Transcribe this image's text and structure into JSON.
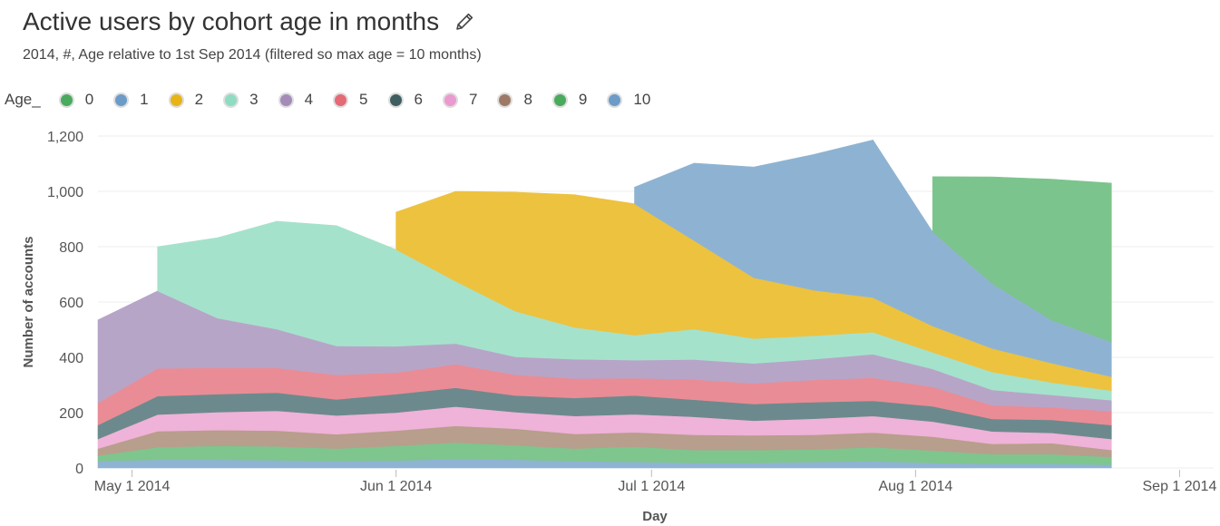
{
  "header": {
    "title": "Active users by cohort age in months",
    "subtitle": "2014, #, Age relative to 1st Sep 2014 (filtered so max age = 10 months)",
    "edit_icon": "pencil-icon"
  },
  "legend": {
    "title": "Age_",
    "items": [
      {
        "label": "0",
        "color": "#4aaa5e"
      },
      {
        "label": "1",
        "color": "#6c9bc8"
      },
      {
        "label": "2",
        "color": "#e7b416"
      },
      {
        "label": "3",
        "color": "#8fdcc2"
      },
      {
        "label": "4",
        "color": "#a58cb8"
      },
      {
        "label": "5",
        "color": "#e46a75"
      },
      {
        "label": "6",
        "color": "#3f5e62"
      },
      {
        "label": "7",
        "color": "#eb9ad0"
      },
      {
        "label": "8",
        "color": "#9e7a66"
      },
      {
        "label": "9",
        "color": "#4aaa5e"
      },
      {
        "label": "10",
        "color": "#6c9bc8"
      }
    ]
  },
  "chart_data": {
    "type": "area",
    "stacked": true,
    "xlabel": "Day",
    "ylabel": "Number of accounts",
    "ylim": [
      0,
      1200
    ],
    "yticks": [
      0,
      200,
      400,
      600,
      800,
      1000,
      1200
    ],
    "ytick_labels": [
      "0",
      "200",
      "400",
      "600",
      "800",
      "1,000",
      "1,200"
    ],
    "xlim": [
      "2014-04-27",
      "2014-09-05"
    ],
    "xticks": [
      "2014-05-01",
      "2014-06-01",
      "2014-07-01",
      "2014-08-01",
      "2014-09-01"
    ],
    "xtick_labels": [
      "May 1 2014",
      "Jun 1 2014",
      "Jul 1 2014",
      "Aug 1 2014",
      "Sep 1 2014"
    ],
    "grid": true,
    "legend_position": "top",
    "x": [
      "2014-04-27",
      "2014-05-04",
      "2014-05-11",
      "2014-05-18",
      "2014-05-25",
      "2014-06-01",
      "2014-06-08",
      "2014-06-15",
      "2014-06-22",
      "2014-06-29",
      "2014-07-06",
      "2014-07-13",
      "2014-07-20",
      "2014-07-27",
      "2014-08-03",
      "2014-08-10",
      "2014-08-17",
      "2014-08-24"
    ],
    "series": [
      {
        "name": "0",
        "color": "#8fb3d3",
        "values": [
          25,
          30,
          30,
          28,
          25,
          27,
          32,
          30,
          25,
          22,
          18,
          18,
          22,
          25,
          18,
          15,
          15,
          12
        ]
      },
      {
        "name": "1",
        "color": "#7fc58e",
        "values": [
          20,
          45,
          50,
          50,
          45,
          53,
          60,
          52,
          45,
          55,
          47,
          47,
          45,
          50,
          45,
          35,
          35,
          28
        ]
      },
      {
        "name": "2",
        "color": "#b89e8c",
        "values": [
          25,
          58,
          57,
          57,
          52,
          55,
          60,
          60,
          53,
          52,
          55,
          53,
          53,
          53,
          50,
          37,
          40,
          25
        ]
      },
      {
        "name": "3",
        "color": "#efb2d8",
        "values": [
          35,
          60,
          65,
          72,
          68,
          65,
          70,
          60,
          65,
          65,
          65,
          53,
          58,
          60,
          55,
          45,
          37,
          40
        ]
      },
      {
        "name": "4",
        "color": "#6c8a8d",
        "values": [
          50,
          67,
          65,
          65,
          58,
          67,
          68,
          60,
          65,
          68,
          62,
          60,
          60,
          55,
          55,
          45,
          47,
          50
        ]
      },
      {
        "name": "5",
        "color": "#ea8c95",
        "values": [
          80,
          100,
          95,
          90,
          88,
          78,
          85,
          75,
          70,
          63,
          73,
          75,
          80,
          83,
          70,
          50,
          45,
          50
        ]
      },
      {
        "name": "6",
        "color": "#b7a5c8",
        "values": [
          300,
          280,
          180,
          140,
          105,
          95,
          75,
          65,
          70,
          65,
          72,
          72,
          75,
          85,
          65,
          55,
          45,
          40
        ]
      },
      {
        "name": "7",
        "color": "#a5e2cc",
        "values": [
          0,
          160,
          290,
          390,
          435,
          350,
          225,
          165,
          115,
          90,
          110,
          90,
          85,
          80,
          60,
          65,
          45,
          35
        ]
      },
      {
        "name": "8",
        "color": "#edc23f",
        "values": [
          0,
          0,
          0,
          0,
          0,
          135,
          325,
          430,
          480,
          475,
          320,
          220,
          165,
          125,
          95,
          85,
          70,
          50
        ]
      },
      {
        "name": "9",
        "color": "#8eb3d2",
        "values": [
          0,
          0,
          0,
          0,
          0,
          0,
          0,
          0,
          0,
          60,
          280,
          400,
          490,
          570,
          340,
          235,
          155,
          125
        ]
      },
      {
        "name": "10",
        "color": "#7cc48d",
        "values": [
          0,
          0,
          0,
          0,
          0,
          0,
          0,
          0,
          0,
          0,
          0,
          0,
          0,
          0,
          200,
          385,
          510,
          575
        ]
      }
    ]
  }
}
